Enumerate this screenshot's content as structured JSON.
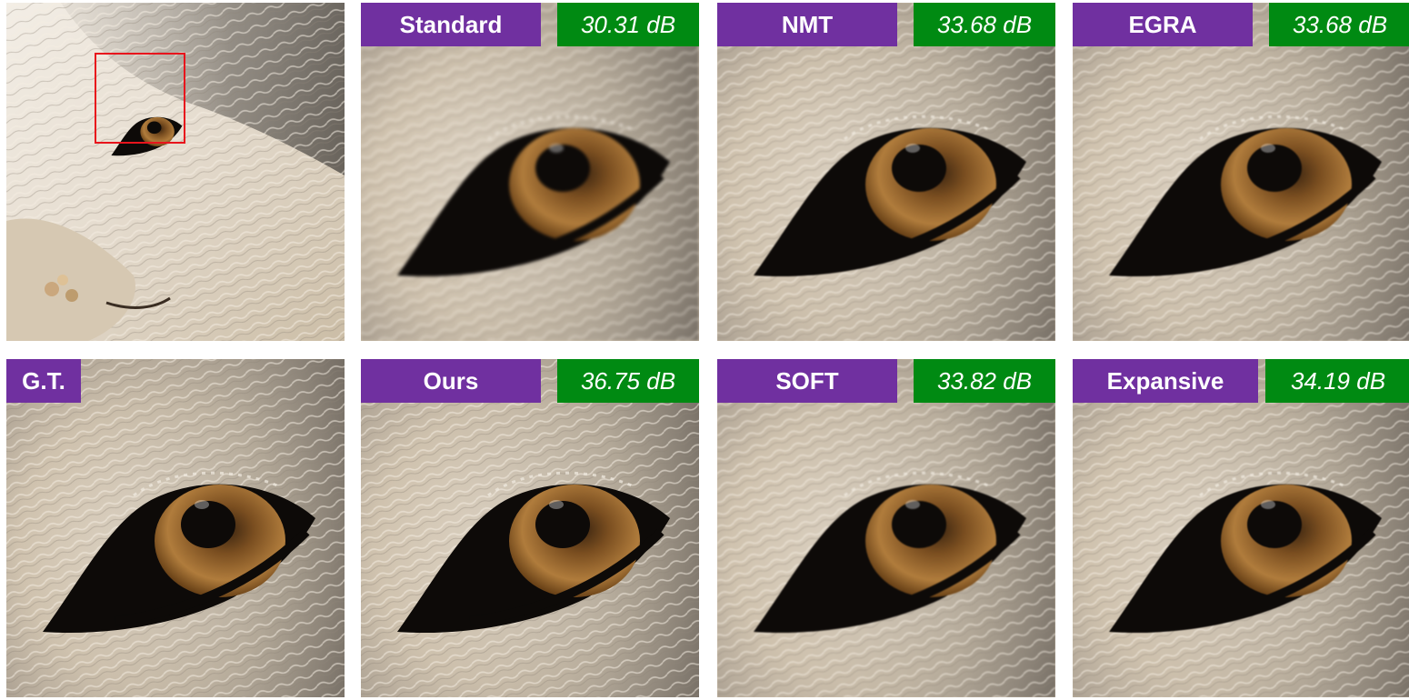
{
  "panels": [
    {
      "id": "overview",
      "method": "",
      "psnr": ""
    },
    {
      "id": "standard",
      "method": "Standard",
      "psnr": "30.31 dB"
    },
    {
      "id": "nmt",
      "method": "NMT",
      "psnr": "33.68 dB"
    },
    {
      "id": "egra",
      "method": "EGRA",
      "psnr": "33.68 dB"
    },
    {
      "id": "gt",
      "method": "G.T.",
      "psnr": ""
    },
    {
      "id": "ours",
      "method": "Ours",
      "psnr": "36.75 dB"
    },
    {
      "id": "soft",
      "method": "SOFT",
      "psnr": "33.82 dB"
    },
    {
      "id": "expansive",
      "method": "Expansive",
      "psnr": "34.19 dB"
    }
  ],
  "colors": {
    "method_label_bg": "#7030a0",
    "psnr_label_bg": "#008a12",
    "zoom_box": "#e8141c",
    "fur_light": "#e8ddd0",
    "fur_mid": "#b8aa98",
    "fur_dark": "#6a635a",
    "iris": "#9a6a2e",
    "pupil": "#0d0a08"
  }
}
